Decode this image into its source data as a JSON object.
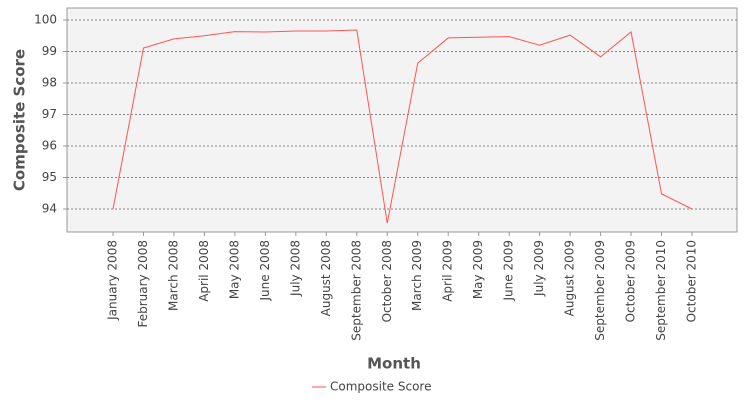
{
  "chart_data": {
    "type": "line",
    "x_label": "Month",
    "y_label": "Composite Score",
    "categories": [
      "January 2008",
      "February 2008",
      "March 2008",
      "April 2008",
      "May 2008",
      "June 2008",
      "July 2008",
      "August 2008",
      "September 2008",
      "October 2008",
      "March 2009",
      "April 2009",
      "May 2009",
      "June 2009",
      "July 2009",
      "August 2009",
      "September 2009",
      "October 2009",
      "September 2010",
      "October 2010"
    ],
    "series": [
      {
        "name": "Composite Score",
        "color": "#ff5555",
        "values": [
          94.0,
          99.11,
          99.4,
          99.5,
          99.63,
          99.62,
          99.65,
          99.65,
          99.68,
          93.55,
          98.63,
          99.43,
          99.45,
          99.47,
          99.2,
          99.52,
          98.83,
          99.62,
          94.48,
          94.0
        ]
      }
    ],
    "ylim": [
      93.27,
      100.38
    ],
    "yticks": [
      94,
      95,
      96,
      97,
      98,
      99,
      100
    ],
    "grid": true
  }
}
